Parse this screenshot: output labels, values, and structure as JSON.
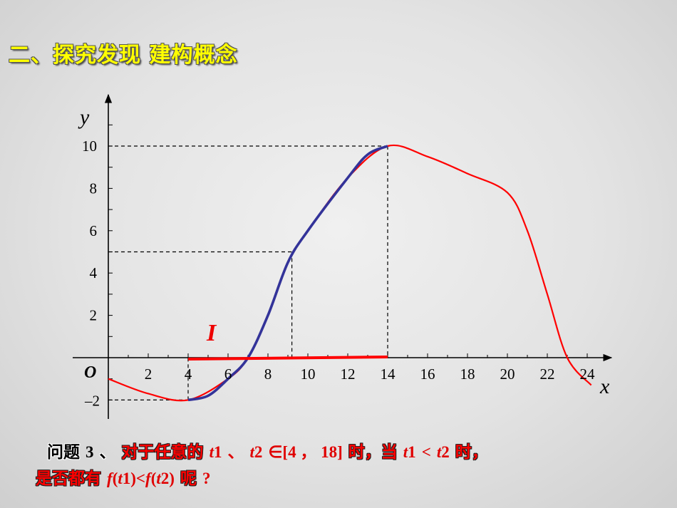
{
  "slide": {
    "title": "二、探究发现 建构概念"
  },
  "question": {
    "line1": {
      "prefix": "问题",
      "num": "3",
      "sep": "、",
      "red_text": "对于任意的",
      "t1": "t",
      "t1_sub": "1",
      "comma1": "、",
      "t2": "t",
      "t2_sub": "2",
      "in_interval": "∈[4 ，  18]",
      "when": "时，当",
      "t1b": "t",
      "t1b_sub": "1",
      "lt": "<",
      "t2b": "t",
      "t2b_sub": "2",
      "when2": "时，"
    },
    "line2": {
      "red_text": "是否都有",
      "expr_f1": "f",
      "expr_p1": "(",
      "expr_t1": "t",
      "expr_n1": "1",
      "expr_p2": ")<",
      "expr_f2": "f",
      "expr_p3": "(",
      "expr_t2": "t",
      "expr_n2": "2",
      "expr_p4": ")",
      "end_cn": "呢",
      "qmark": "?"
    }
  },
  "chart_data": {
    "type": "line",
    "xlabel": "x",
    "ylabel": "y",
    "origin_label": "O",
    "interval_label": "I",
    "x_ticks": [
      2,
      4,
      6,
      8,
      10,
      12,
      14,
      16,
      18,
      20,
      22,
      24
    ],
    "y_ticks": [
      10,
      8,
      6,
      4,
      2
    ],
    "y_tick_neg_label": "–2",
    "xlim": [
      0,
      25
    ],
    "ylim": [
      -2.5,
      12.5
    ],
    "series": [
      {
        "color": "#ff0000",
        "points": [
          [
            0,
            -1
          ],
          [
            2,
            -1.7
          ],
          [
            4,
            -2
          ],
          [
            6,
            -1
          ],
          [
            7,
            0
          ],
          [
            8,
            2
          ],
          [
            9,
            4.5
          ],
          [
            10,
            6
          ],
          [
            12,
            8.5
          ],
          [
            14,
            10
          ],
          [
            16,
            9.5
          ],
          [
            18,
            8.7
          ],
          [
            20,
            7.8
          ],
          [
            21,
            6
          ],
          [
            22,
            3
          ],
          [
            23,
            0
          ],
          [
            24.2,
            -1.3
          ]
        ]
      },
      {
        "color": "#333399",
        "points": [
          [
            4,
            -2
          ],
          [
            5,
            -1.8
          ],
          [
            6,
            -1
          ],
          [
            7,
            0
          ],
          [
            8,
            2
          ],
          [
            9,
            4.5
          ],
          [
            10,
            6
          ],
          [
            12,
            8.5
          ],
          [
            13,
            9.6
          ],
          [
            14,
            10
          ]
        ]
      }
    ],
    "interval": {
      "from": 4,
      "to": 14,
      "color": "#ff0000"
    },
    "guides": [
      {
        "x": 14,
        "y": 10
      },
      {
        "x": 9.2,
        "y": 5
      },
      {
        "x": 4,
        "y": -2
      }
    ],
    "colors": {
      "title": "#ffff00",
      "question_red": "#ff0000",
      "axis": "#000000"
    }
  }
}
